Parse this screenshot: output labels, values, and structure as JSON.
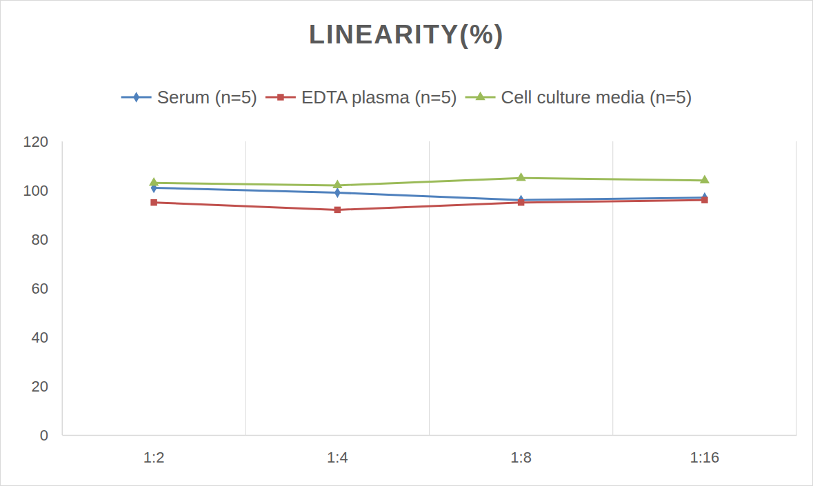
{
  "chart_data": {
    "type": "line",
    "title": "LINEARITY(%)",
    "categories": [
      "1:2",
      "1:4",
      "1:8",
      "1:16"
    ],
    "series": [
      {
        "name": "Serum (n=5)",
        "color": "#4f81bd",
        "marker": "diamond",
        "values": [
          101,
          99,
          96,
          97
        ]
      },
      {
        "name": "EDTA plasma (n=5)",
        "color": "#c0504d",
        "marker": "square",
        "values": [
          95,
          92,
          95,
          96
        ]
      },
      {
        "name": "Cell culture media (n=5)",
        "color": "#9bbb59",
        "marker": "triangle",
        "values": [
          103,
          102,
          105,
          104
        ]
      }
    ],
    "ylim": [
      0,
      120
    ],
    "yticks": [
      0,
      20,
      40,
      60,
      80,
      100,
      120
    ],
    "grid": true
  }
}
